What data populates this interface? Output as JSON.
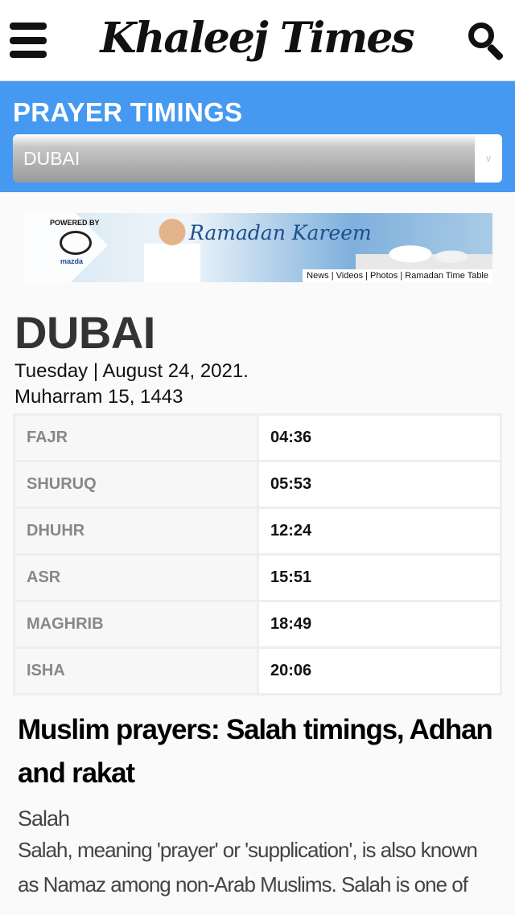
{
  "header": {
    "logo": "Khaleej Times",
    "menu_icon": "hamburger-icon",
    "search_icon": "search-icon"
  },
  "band": {
    "title": "PRAYER TIMINGS",
    "city_select": "DUBAI",
    "color": "#4699f1"
  },
  "banner": {
    "powered_by": "POWERED BY",
    "brand": "mazda",
    "headline": "Ramadan Kareem",
    "links": "News | Videos | Photos | Ramadan Time Table"
  },
  "city": "DUBAI",
  "date": "Tuesday | August 24, 2021.",
  "hijri": "Muharram 15, 1443",
  "prayers": [
    {
      "name": "FAJR",
      "time": "04:36"
    },
    {
      "name": "SHURUQ",
      "time": "05:53"
    },
    {
      "name": "DHUHR",
      "time": "12:24"
    },
    {
      "name": "ASR",
      "time": "15:51"
    },
    {
      "name": "MAGHRIB",
      "time": "18:49"
    },
    {
      "name": "ISHA",
      "time": "20:06"
    }
  ],
  "article": {
    "title": "Muslim prayers: Salah timings, Adhan and rakat",
    "subtitle": "Salah",
    "body": "Salah, meaning 'prayer' or 'supplication', is also known as Namaz among non-Arab Muslims. Salah is one of"
  }
}
